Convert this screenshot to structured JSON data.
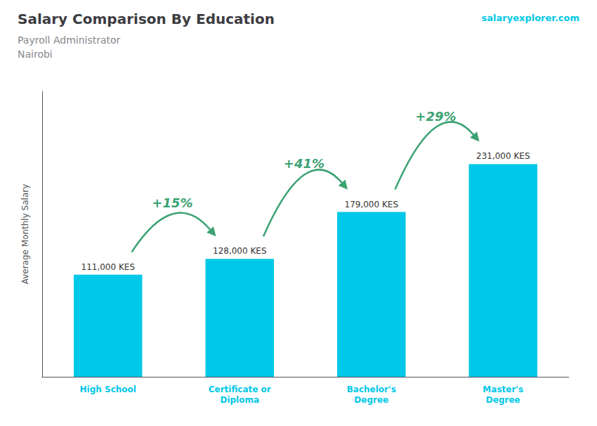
{
  "chart_data": {
    "type": "bar",
    "title": "Salary Comparison By Education",
    "subtitle": "Payroll Administrator\nNairobi",
    "y_label": "Average Monthly Salary",
    "categories": [
      "High School",
      "Certificate or\nDiploma",
      "Bachelor's\nDegree",
      "Master's\nDegree"
    ],
    "values": [
      111000,
      128000,
      179000,
      231000
    ],
    "value_labels": [
      "111,000 KES",
      "128,000 KES",
      "179,000 KES",
      "231,000 KES"
    ],
    "data_labels": true,
    "annotations": [
      "+15%",
      "+41%",
      "+29%",
      "salaryexplorer.com"
    ],
    "color": "#00c8e8",
    "ylim": [
      0,
      310000
    ],
    "tick_labels": "x",
    "grid": false
  }
}
